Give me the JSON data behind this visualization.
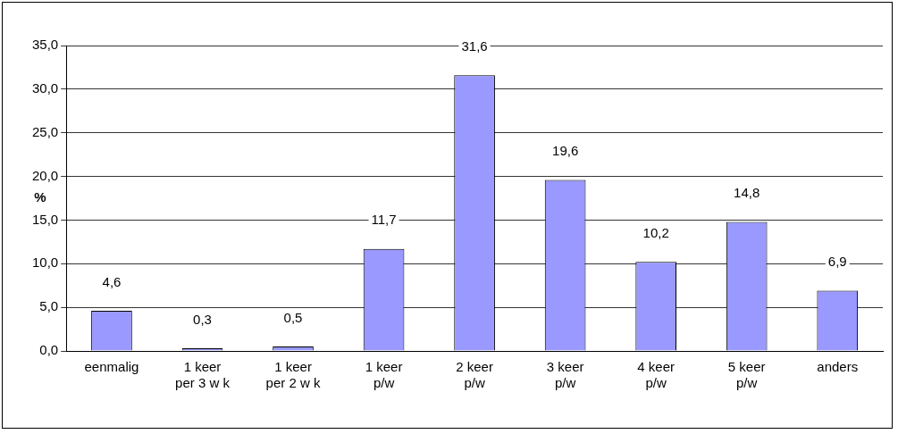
{
  "chart_data": {
    "type": "bar",
    "ylabel": "%",
    "categories": [
      "eenmalig",
      "1 keer\nper 3 w k",
      "1 keer\nper 2 w k",
      "1 keer\np/w",
      "2 keer\np/w",
      "3 keer\np/w",
      "4 keer\np/w",
      "5 keer\np/w",
      "anders"
    ],
    "values": [
      4.6,
      0.3,
      0.5,
      11.7,
      31.6,
      19.6,
      10.2,
      14.8,
      6.9
    ],
    "value_labels": [
      "4,6",
      "0,3",
      "0,5",
      "11,7",
      "31,6",
      "19,6",
      "10,2",
      "14,8",
      "6,9"
    ],
    "color": "#9999ff",
    "ylim": [
      0,
      35
    ],
    "yticks": [
      {
        "value": 0,
        "label": "0,0"
      },
      {
        "value": 5,
        "label": "5,0"
      },
      {
        "value": 10,
        "label": "10,0"
      },
      {
        "value": 15,
        "label": "15,0"
      },
      {
        "value": 20,
        "label": "20,0"
      },
      {
        "value": 25,
        "label": "25,0"
      },
      {
        "value": 30,
        "label": "30,0"
      },
      {
        "value": 35,
        "label": "35,0"
      }
    ],
    "grid": "y",
    "legend": false
  }
}
